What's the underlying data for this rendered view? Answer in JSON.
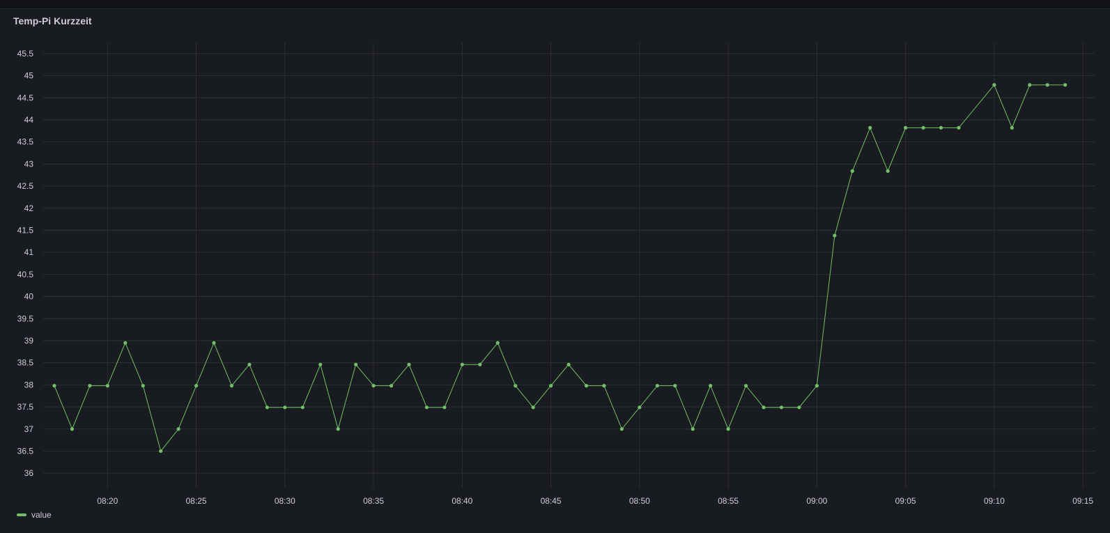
{
  "panel": {
    "title": "Temp-Pi Kurzzeit"
  },
  "colors": {
    "series": "#73bf69",
    "grid": "#2c2f35",
    "tick_text": "#ccccdc"
  },
  "chart_data": {
    "type": "line",
    "title": "Temp-Pi Kurzzeit",
    "xlabel": "",
    "ylabel": "",
    "x_axis": "time",
    "y_ticks": [
      "36",
      "36.5",
      "37",
      "37.5",
      "38",
      "38.5",
      "39",
      "39.5",
      "40",
      "40.5",
      "41",
      "41.5",
      "42",
      "42.5",
      "43",
      "43.5",
      "44",
      "44.5",
      "45",
      "45.5"
    ],
    "ylim": [
      35.75,
      45.75
    ],
    "x_ticks": [
      "08:20",
      "08:25",
      "08:30",
      "08:35",
      "08:40",
      "08:45",
      "08:50",
      "08:55",
      "09:00",
      "09:05",
      "09:10",
      "09:15"
    ],
    "x_range": [
      "08:17",
      "09:15"
    ],
    "grid": true,
    "legend_position": "bottom-left",
    "points_shown": true,
    "series": [
      {
        "name": "value",
        "color": "#73bf69",
        "x": [
          "08:17",
          "08:18",
          "08:19",
          "08:20",
          "08:21",
          "08:22",
          "08:23",
          "08:24",
          "08:25",
          "08:26",
          "08:27",
          "08:28",
          "08:29",
          "08:30",
          "08:31",
          "08:32",
          "08:33",
          "08:34",
          "08:35",
          "08:36",
          "08:37",
          "08:38",
          "08:39",
          "08:40",
          "08:41",
          "08:42",
          "08:43",
          "08:44",
          "08:45",
          "08:46",
          "08:47",
          "08:48",
          "08:49",
          "08:50",
          "08:51",
          "08:52",
          "08:53",
          "08:54",
          "08:55",
          "08:56",
          "08:57",
          "08:58",
          "08:59",
          "09:00",
          "09:01",
          "09:02",
          "09:03",
          "09:04",
          "09:05",
          "09:06",
          "09:07",
          "09:08",
          "09:10",
          "09:11",
          "09:12",
          "09:13",
          "09:14"
        ],
        "values": [
          37.98,
          37.0,
          37.98,
          37.98,
          38.95,
          37.98,
          36.5,
          37.0,
          37.98,
          38.95,
          37.98,
          38.46,
          37.49,
          37.49,
          37.49,
          38.46,
          37.0,
          38.46,
          37.98,
          37.98,
          38.46,
          37.49,
          37.49,
          38.46,
          38.46,
          38.95,
          37.98,
          37.49,
          37.98,
          38.46,
          37.98,
          37.98,
          37.0,
          37.49,
          37.98,
          37.98,
          37.0,
          37.98,
          37.0,
          37.98,
          37.49,
          37.49,
          37.49,
          37.98,
          41.38,
          42.84,
          43.82,
          42.84,
          43.82,
          43.82,
          43.82,
          43.82,
          44.79,
          43.82,
          44.79,
          44.79,
          44.79
        ]
      }
    ]
  }
}
